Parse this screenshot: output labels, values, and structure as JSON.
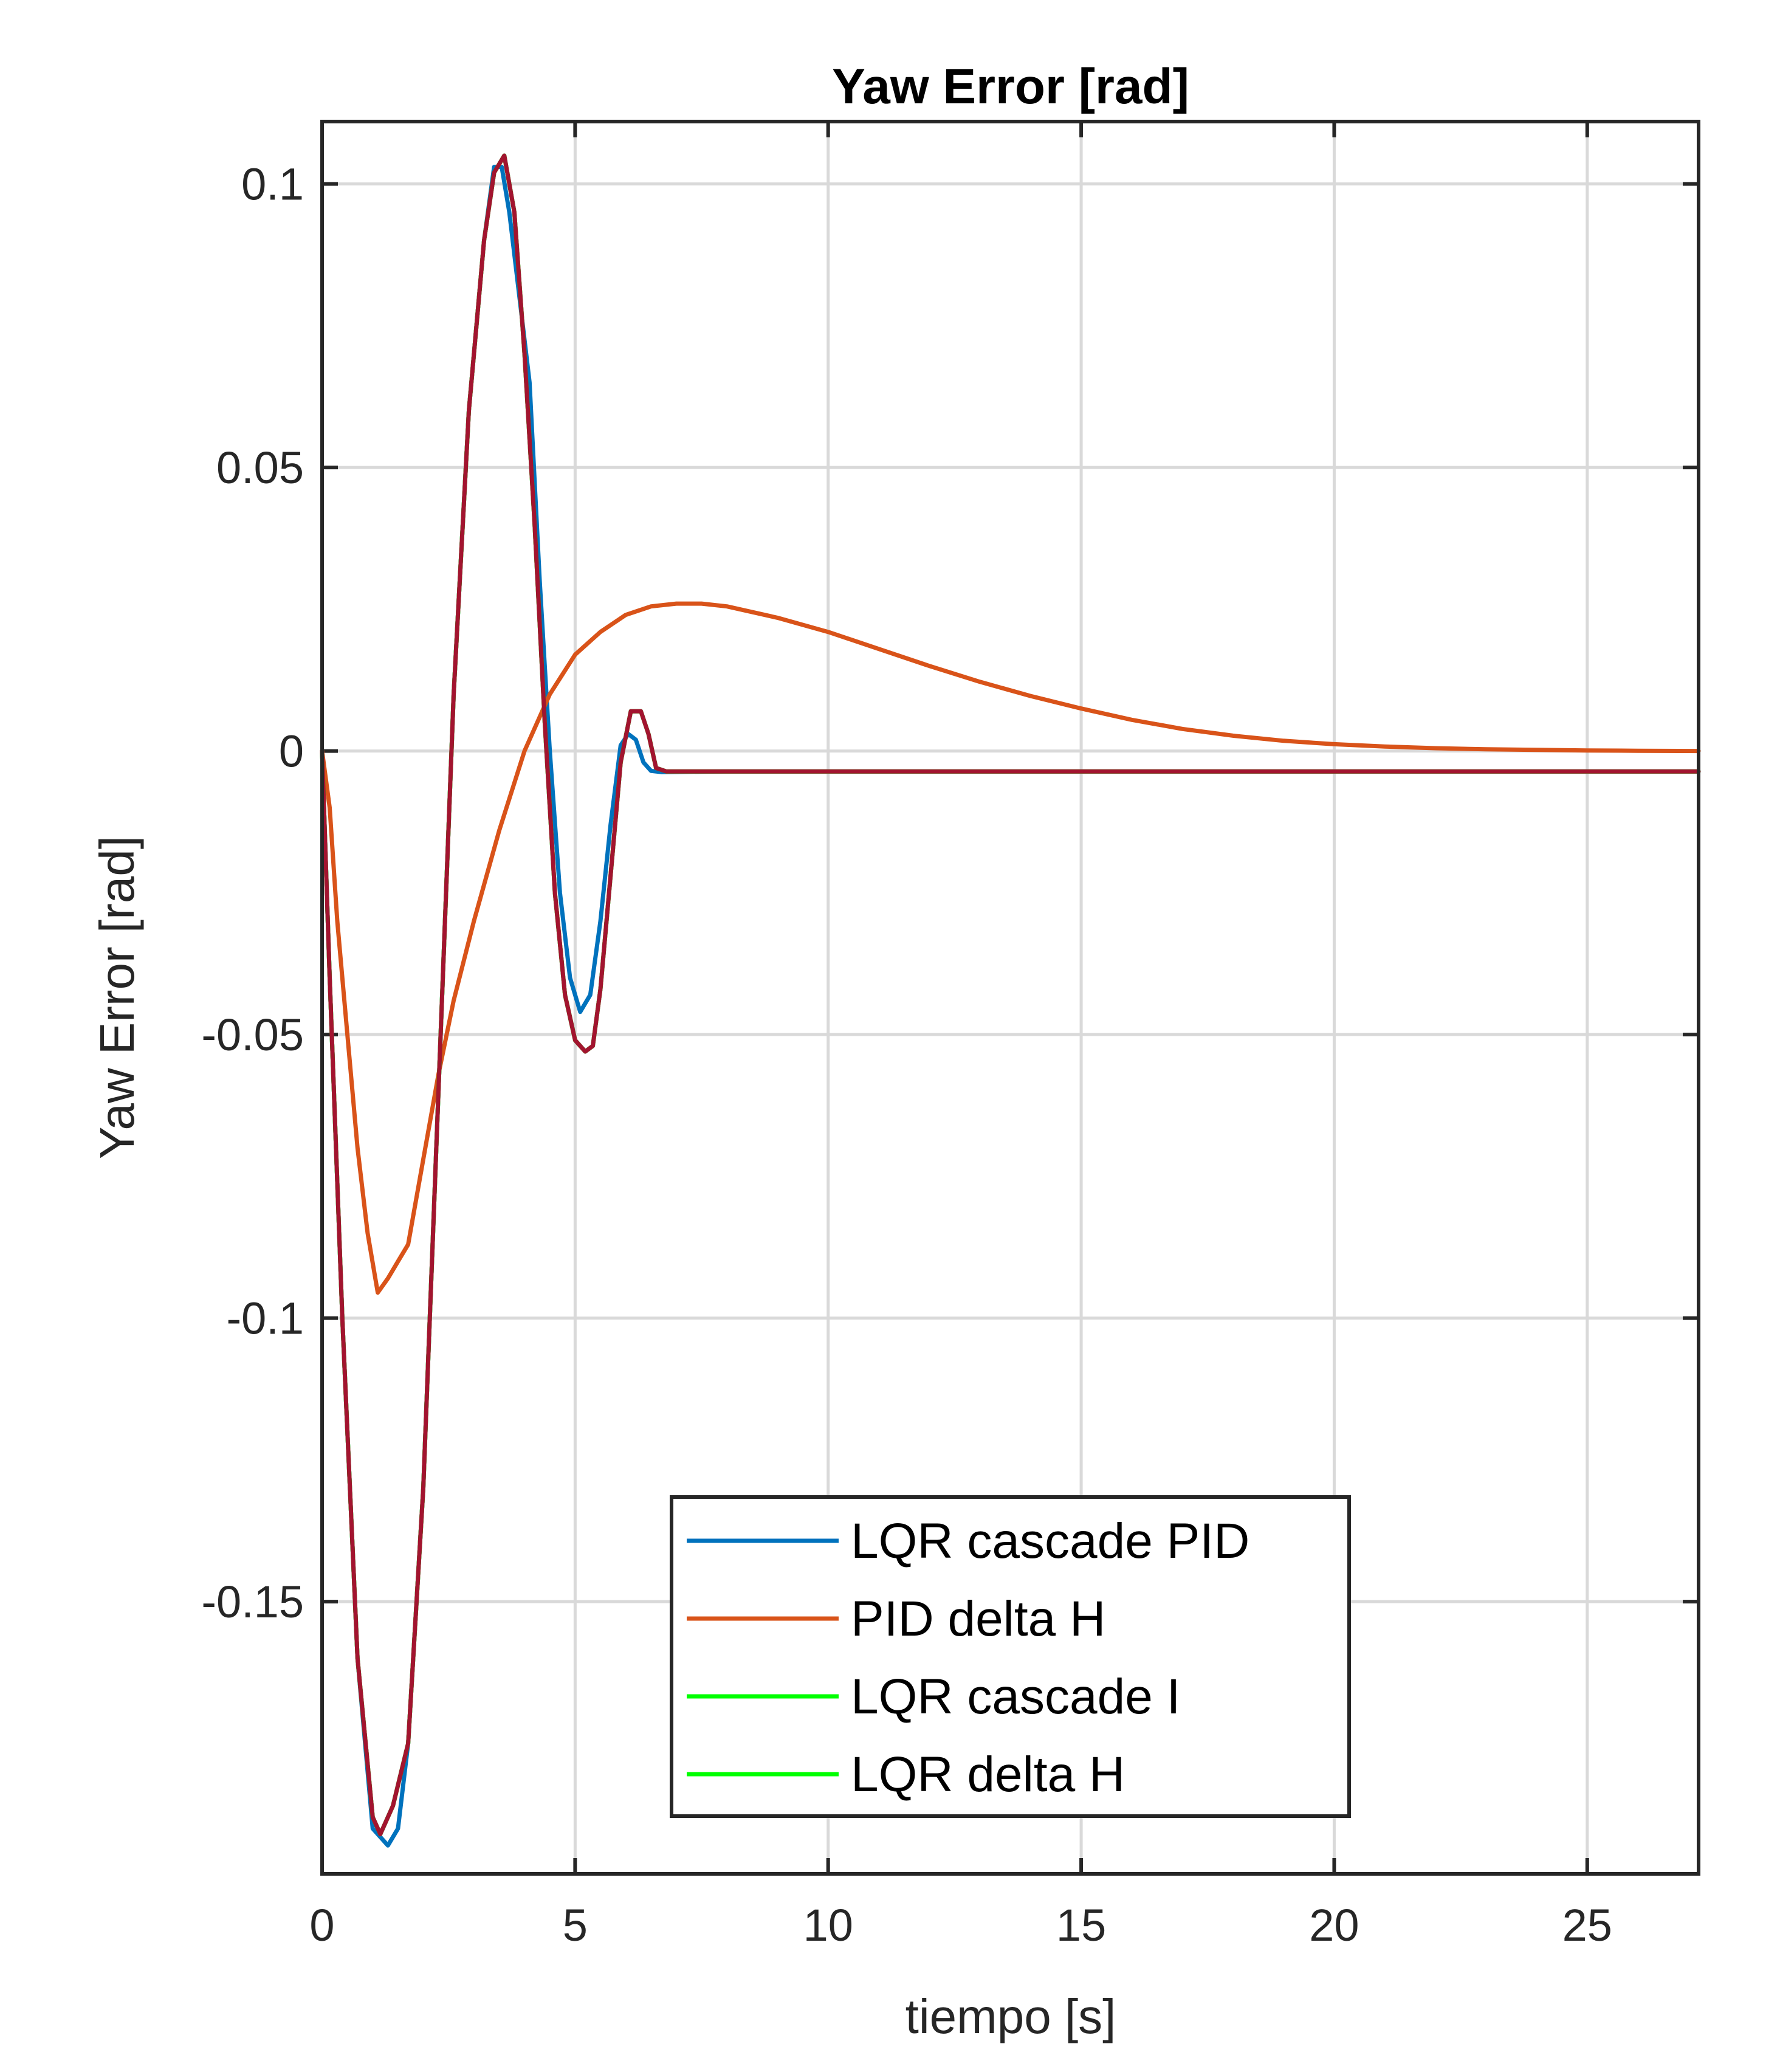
{
  "chart_data": {
    "type": "line",
    "title": "Yaw Error [rad]",
    "xlabel": "tiempo [s]",
    "ylabel": "Yaw Error [rad]",
    "xlim": [
      0,
      27.2
    ],
    "ylim": [
      -0.198,
      0.111
    ],
    "xticks": [
      0,
      5,
      10,
      15,
      20,
      25
    ],
    "xtick_labels": [
      "0",
      "5",
      "10",
      "15",
      "20",
      "25"
    ],
    "yticks": [
      0.1,
      0.05,
      0,
      -0.05,
      -0.1,
      -0.15
    ],
    "ytick_labels": [
      "0.1",
      "0.05",
      "0",
      "-0.05",
      "-0.1",
      "-0.15"
    ],
    "grid": true,
    "legend_position": "bottom-center",
    "series": [
      {
        "name": "LQR cascade PID",
        "color": "#0072BD",
        "points": [
          [
            0,
            0
          ],
          [
            0.15,
            -0.04
          ],
          [
            0.4,
            -0.1
          ],
          [
            0.7,
            -0.16
          ],
          [
            1.0,
            -0.19
          ],
          [
            1.3,
            -0.193
          ],
          [
            1.5,
            -0.19
          ],
          [
            1.7,
            -0.175
          ],
          [
            2.0,
            -0.13
          ],
          [
            2.3,
            -0.06
          ],
          [
            2.6,
            0.01
          ],
          [
            2.9,
            0.06
          ],
          [
            3.2,
            0.09
          ],
          [
            3.4,
            0.103
          ],
          [
            3.55,
            0.103
          ],
          [
            3.7,
            0.095
          ],
          [
            3.9,
            0.08
          ],
          [
            4.1,
            0.065
          ],
          [
            4.3,
            0.03
          ],
          [
            4.5,
            0.0
          ],
          [
            4.7,
            -0.025
          ],
          [
            4.9,
            -0.04
          ],
          [
            5.1,
            -0.046
          ],
          [
            5.3,
            -0.043
          ],
          [
            5.5,
            -0.03
          ],
          [
            5.7,
            -0.013
          ],
          [
            5.9,
            0.001
          ],
          [
            6.05,
            0.003
          ],
          [
            6.2,
            0.002
          ],
          [
            6.35,
            -0.002
          ],
          [
            6.5,
            -0.0035
          ],
          [
            6.7,
            -0.0037
          ],
          [
            8,
            -0.0036
          ],
          [
            12,
            -0.0036
          ],
          [
            16,
            -0.0036
          ],
          [
            20,
            -0.0036
          ],
          [
            24,
            -0.0036
          ],
          [
            27.2,
            -0.0036
          ]
        ]
      },
      {
        "name": "PID delta H",
        "color": "#D95319",
        "points": [
          [
            0,
            0
          ],
          [
            0.15,
            -0.01
          ],
          [
            0.3,
            -0.03
          ],
          [
            0.5,
            -0.05
          ],
          [
            0.7,
            -0.07
          ],
          [
            0.9,
            -0.085
          ],
          [
            1.1,
            -0.0955
          ],
          [
            1.3,
            -0.093
          ],
          [
            1.5,
            -0.09
          ],
          [
            1.7,
            -0.087
          ],
          [
            2.0,
            -0.072
          ],
          [
            2.3,
            -0.057
          ],
          [
            2.6,
            -0.044
          ],
          [
            3.0,
            -0.03
          ],
          [
            3.5,
            -0.014
          ],
          [
            4.0,
            0.0
          ],
          [
            4.5,
            0.01
          ],
          [
            5,
            0.017
          ],
          [
            5.5,
            0.021
          ],
          [
            6,
            0.024
          ],
          [
            6.5,
            0.0255
          ],
          [
            7,
            0.026
          ],
          [
            7.5,
            0.026
          ],
          [
            8,
            0.0255
          ],
          [
            9,
            0.0235
          ],
          [
            10,
            0.021
          ],
          [
            11,
            0.018
          ],
          [
            12,
            0.015
          ],
          [
            13,
            0.0122
          ],
          [
            14,
            0.0097
          ],
          [
            15,
            0.0075
          ],
          [
            16,
            0.0055
          ],
          [
            17,
            0.0039
          ],
          [
            18,
            0.0027
          ],
          [
            19,
            0.0018
          ],
          [
            20,
            0.0012
          ],
          [
            21,
            0.0008
          ],
          [
            22,
            0.0005
          ],
          [
            23,
            0.0003
          ],
          [
            24,
            0.0002
          ],
          [
            25,
            0.0001
          ],
          [
            26,
            5e-05
          ],
          [
            27.2,
            0.0
          ]
        ]
      },
      {
        "name": "LQR cascade I",
        "color": "#00FF00",
        "points": [
          [
            0,
            0
          ],
          [
            0.15,
            -0.04
          ],
          [
            0.4,
            -0.1
          ],
          [
            0.7,
            -0.16
          ],
          [
            1.0,
            -0.188
          ],
          [
            1.15,
            -0.191
          ],
          [
            1.4,
            -0.186
          ],
          [
            1.7,
            -0.175
          ],
          [
            2.0,
            -0.13
          ],
          [
            2.3,
            -0.06
          ],
          [
            2.6,
            0.01
          ],
          [
            2.9,
            0.06
          ],
          [
            3.2,
            0.09
          ],
          [
            3.4,
            0.102
          ],
          [
            3.6,
            0.105
          ],
          [
            3.8,
            0.095
          ],
          [
            4.0,
            0.07
          ],
          [
            4.2,
            0.04
          ],
          [
            4.4,
            0.005
          ],
          [
            4.6,
            -0.025
          ],
          [
            4.8,
            -0.043
          ],
          [
            5.0,
            -0.051
          ],
          [
            5.2,
            -0.053
          ],
          [
            5.35,
            -0.052
          ],
          [
            5.5,
            -0.042
          ],
          [
            5.7,
            -0.022
          ],
          [
            5.9,
            -0.002
          ],
          [
            6.1,
            0.007
          ],
          [
            6.3,
            0.007
          ],
          [
            6.45,
            0.003
          ],
          [
            6.6,
            -0.003
          ],
          [
            6.8,
            -0.0036
          ],
          [
            8,
            -0.0036
          ],
          [
            12,
            -0.0036
          ],
          [
            16,
            -0.0036
          ],
          [
            20,
            -0.0036
          ],
          [
            24,
            -0.0036
          ],
          [
            27.2,
            -0.0036
          ]
        ]
      },
      {
        "name": "LQR delta H",
        "color": "#00FF00",
        "points": [
          [
            0,
            0
          ],
          [
            0.15,
            -0.04
          ],
          [
            0.4,
            -0.1
          ],
          [
            0.7,
            -0.16
          ],
          [
            1.0,
            -0.188
          ],
          [
            1.15,
            -0.191
          ],
          [
            1.4,
            -0.186
          ],
          [
            1.7,
            -0.175
          ],
          [
            2.0,
            -0.13
          ],
          [
            2.3,
            -0.06
          ],
          [
            2.6,
            0.01
          ],
          [
            2.9,
            0.06
          ],
          [
            3.2,
            0.09
          ],
          [
            3.4,
            0.102
          ],
          [
            3.6,
            0.105
          ],
          [
            3.8,
            0.095
          ],
          [
            4.0,
            0.07
          ],
          [
            4.2,
            0.04
          ],
          [
            4.4,
            0.005
          ],
          [
            4.6,
            -0.025
          ],
          [
            4.8,
            -0.043
          ],
          [
            5.0,
            -0.051
          ],
          [
            5.2,
            -0.053
          ],
          [
            5.35,
            -0.052
          ],
          [
            5.5,
            -0.042
          ],
          [
            5.7,
            -0.022
          ],
          [
            5.9,
            -0.002
          ],
          [
            6.1,
            0.007
          ],
          [
            6.3,
            0.007
          ],
          [
            6.45,
            0.003
          ],
          [
            6.6,
            -0.003
          ],
          [
            6.8,
            -0.0036
          ],
          [
            8,
            -0.0036
          ],
          [
            12,
            -0.0036
          ],
          [
            16,
            -0.0036
          ],
          [
            20,
            -0.0036
          ],
          [
            24,
            -0.0036
          ],
          [
            27.2,
            -0.0036
          ]
        ]
      },
      {
        "color": "#A2142F",
        "points": [
          [
            0,
            0
          ],
          [
            0.15,
            -0.04
          ],
          [
            0.4,
            -0.1
          ],
          [
            0.7,
            -0.16
          ],
          [
            1.0,
            -0.188
          ],
          [
            1.15,
            -0.191
          ],
          [
            1.4,
            -0.186
          ],
          [
            1.7,
            -0.175
          ],
          [
            2.0,
            -0.13
          ],
          [
            2.3,
            -0.06
          ],
          [
            2.6,
            0.01
          ],
          [
            2.9,
            0.06
          ],
          [
            3.2,
            0.09
          ],
          [
            3.4,
            0.102
          ],
          [
            3.6,
            0.105
          ],
          [
            3.8,
            0.095
          ],
          [
            4.0,
            0.07
          ],
          [
            4.2,
            0.04
          ],
          [
            4.4,
            0.005
          ],
          [
            4.6,
            -0.025
          ],
          [
            4.8,
            -0.043
          ],
          [
            5.0,
            -0.051
          ],
          [
            5.2,
            -0.053
          ],
          [
            5.35,
            -0.052
          ],
          [
            5.5,
            -0.042
          ],
          [
            5.7,
            -0.022
          ],
          [
            5.9,
            -0.002
          ],
          [
            6.1,
            0.007
          ],
          [
            6.3,
            0.007
          ],
          [
            6.45,
            0.003
          ],
          [
            6.6,
            -0.003
          ],
          [
            6.8,
            -0.0036
          ],
          [
            8,
            -0.0036
          ],
          [
            12,
            -0.0036
          ],
          [
            16,
            -0.0036
          ],
          [
            20,
            -0.0036
          ],
          [
            24,
            -0.0036
          ],
          [
            27.2,
            -0.0036
          ]
        ]
      }
    ],
    "legend": [
      {
        "label": "LQR cascade PID",
        "color": "#0072BD"
      },
      {
        "label": "PID delta H",
        "color": "#D95319"
      },
      {
        "label": "LQR cascade I",
        "color": "#00FF00"
      },
      {
        "label": "LQR delta H",
        "color": "#00FF00"
      }
    ]
  }
}
